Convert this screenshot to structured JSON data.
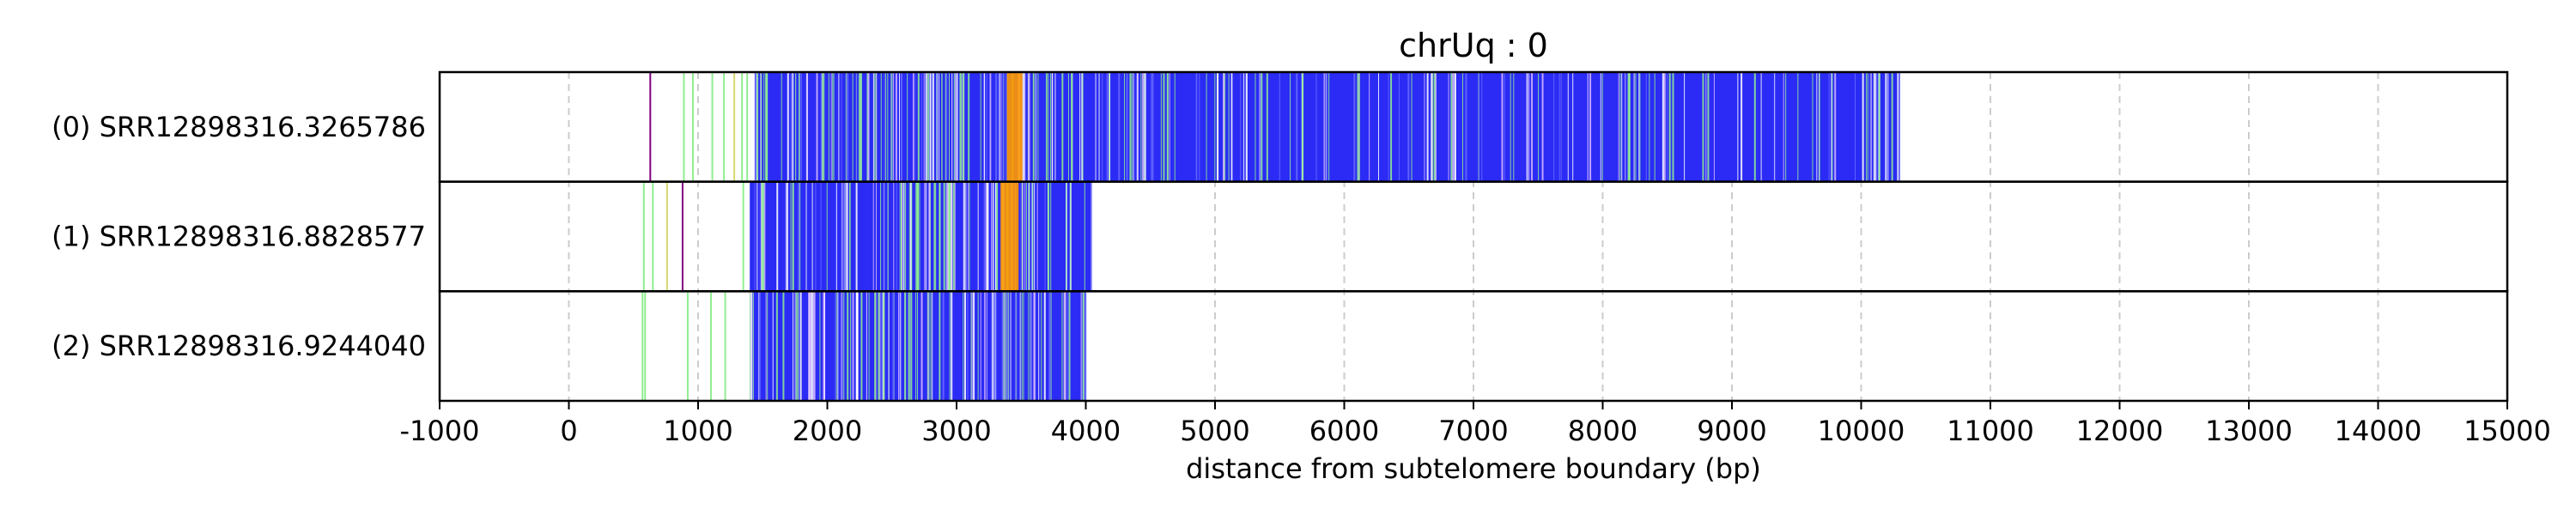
{
  "chart_data": {
    "type": "read_track",
    "title": "chrUq : 0",
    "xlabel": "distance from subtelomere boundary (bp)",
    "xlim": [
      -1000,
      15000
    ],
    "xticks": [
      -1000,
      0,
      1000,
      2000,
      3000,
      4000,
      5000,
      6000,
      7000,
      8000,
      9000,
      10000,
      11000,
      12000,
      13000,
      14000,
      15000
    ],
    "grid": "vertical dashed",
    "colors": {
      "telomere_repeat": "#2b2bf5",
      "variant_repeat": "#90ee90",
      "variant_repeat_alt": "#ff9900",
      "variant_repeat_minor": "#800080",
      "variant_repeat_light": "#d8b8ff",
      "gridline": "#cccccc"
    },
    "reads": [
      {
        "label": "(0) SRR12898316.3265786",
        "dense_region": [
          1440,
          10300
        ],
        "orange_region": [
          3390,
          3510
        ],
        "sparse_marks": [
          {
            "x": 630,
            "color": "#800080"
          },
          {
            "x": 890,
            "color": "#90ee90"
          },
          {
            "x": 960,
            "color": "#90ee90"
          },
          {
            "x": 1110,
            "color": "#90ee90"
          },
          {
            "x": 1200,
            "color": "#90ee90"
          },
          {
            "x": 1280,
            "color": "#d8d870"
          },
          {
            "x": 1340,
            "color": "#90ee90"
          },
          {
            "x": 1380,
            "color": "#90ee90"
          }
        ]
      },
      {
        "label": "(1) SRR12898316.8828577",
        "dense_region": [
          1400,
          4050
        ],
        "orange_region": [
          3340,
          3480
        ],
        "sparse_marks": [
          {
            "x": 580,
            "color": "#90ee90"
          },
          {
            "x": 650,
            "color": "#90ee90"
          },
          {
            "x": 760,
            "color": "#d8d870"
          },
          {
            "x": 880,
            "color": "#800080"
          },
          {
            "x": 1350,
            "color": "#90ee90"
          }
        ]
      },
      {
        "label": "(2) SRR12898316.9244040",
        "dense_region": [
          1400,
          4010
        ],
        "orange_region": null,
        "sparse_marks": [
          {
            "x": 570,
            "color": "#90ee90"
          },
          {
            "x": 590,
            "color": "#90ee90"
          },
          {
            "x": 920,
            "color": "#90ee90"
          },
          {
            "x": 1100,
            "color": "#90ee90"
          },
          {
            "x": 1210,
            "color": "#90ee90"
          }
        ]
      }
    ]
  }
}
